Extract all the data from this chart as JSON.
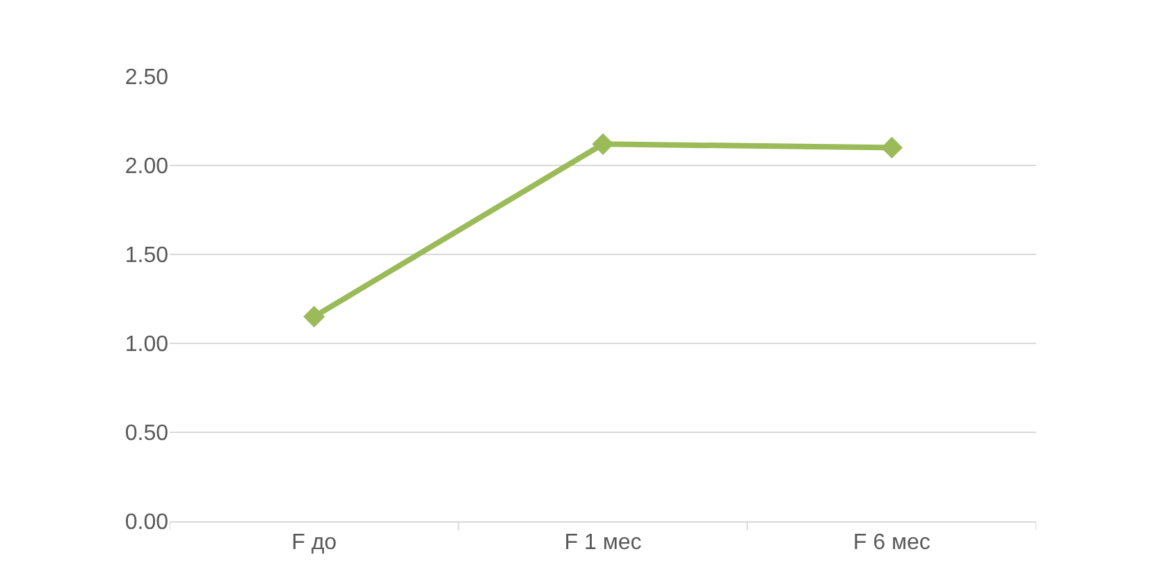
{
  "chart_data": {
    "type": "line",
    "categories": [
      "F до",
      "F 1 мес",
      "F 6 мес"
    ],
    "series": [
      {
        "color": "#9bbb59",
        "values": [
          1.15,
          2.12,
          2.1
        ]
      }
    ],
    "ylim": [
      0,
      2.5
    ],
    "yticks": [
      {
        "value": 0,
        "label": "0.00"
      },
      {
        "value": 0.5,
        "label": "0.50"
      },
      {
        "value": 1,
        "label": "1.00"
      },
      {
        "value": 1.5,
        "label": "1.50"
      },
      {
        "value": 2,
        "label": "2.00"
      },
      {
        "value": 2.5,
        "label": "2.50"
      }
    ],
    "grid": "y",
    "marker": "diamond",
    "line_style": "solid"
  }
}
